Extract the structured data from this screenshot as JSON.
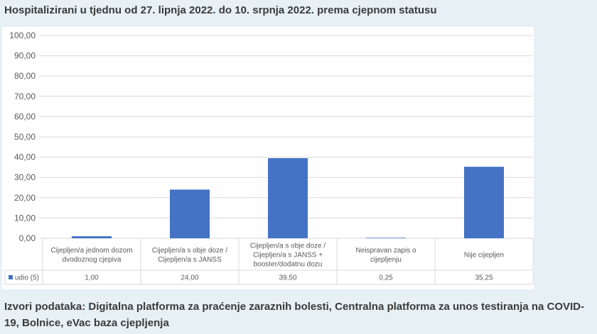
{
  "title": "Hospitalizirani u tjednu od 27. lipnja 2022. do 10. srpnja 2022. prema cjepnom statusu",
  "footer": "Izvori podataka: Digitalna platforma za praćenje zaraznih bolesti, Centralna platforma za unos testiranja na COVID-19, Bolnice, eVac baza cjepljenja",
  "colors": {
    "bar": "#4472c4",
    "grid": "#d9d9d9",
    "text": "#595959"
  },
  "chart_data": {
    "type": "bar",
    "categories": [
      [
        "Cijepljen/a jednom dozom",
        "dvodoznog cjepiva"
      ],
      [
        "Cijepljen/a s obje doze /",
        "Cijepljen/a s JANSS"
      ],
      [
        "Cijepljen/a s obje doze /",
        "Cijepljen/a s JANSS +",
        "booster/dodatnu dozu"
      ],
      [
        "Neispravan zapis o",
        "cijepljenju"
      ],
      [
        "Nije cijepljen"
      ]
    ],
    "series": [
      {
        "name": "udio (5)",
        "values": [
          1.0,
          24.0,
          39.5,
          0.25,
          35.25
        ],
        "labels": [
          "1,00",
          "24,00",
          "39,50",
          "0,25",
          "35,25"
        ]
      }
    ],
    "yticks": [
      "0,00",
      "10,00",
      "20,00",
      "30,00",
      "40,00",
      "50,00",
      "60,00",
      "70,00",
      "80,00",
      "90,00",
      "100,00"
    ],
    "ylim": [
      0,
      100
    ],
    "grid": true,
    "legend": "data table"
  }
}
